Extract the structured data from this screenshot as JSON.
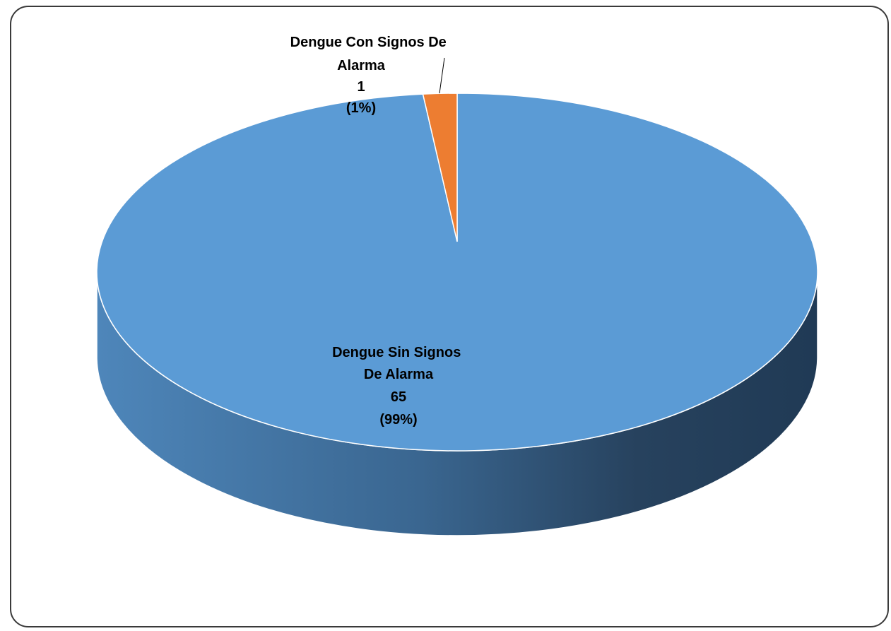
{
  "chart_data": {
    "type": "pie",
    "title": "",
    "slices": [
      {
        "label_lines": [
          "Dengue Sin Signos",
          "De Alarma"
        ],
        "value": 65,
        "value_text": "65",
        "percent": 99,
        "percent_text": "(99%)",
        "color": "#5B9BD5",
        "side_color": "#4A7FB0"
      },
      {
        "label_lines": [
          "Dengue Con Signos De",
          "Alarma"
        ],
        "value": 1,
        "value_text": "1",
        "percent": 1,
        "percent_text": "(1%)",
        "color": "#ED7D31",
        "side_color": "#B85F22"
      }
    ],
    "legend": "none",
    "style": "3d"
  }
}
